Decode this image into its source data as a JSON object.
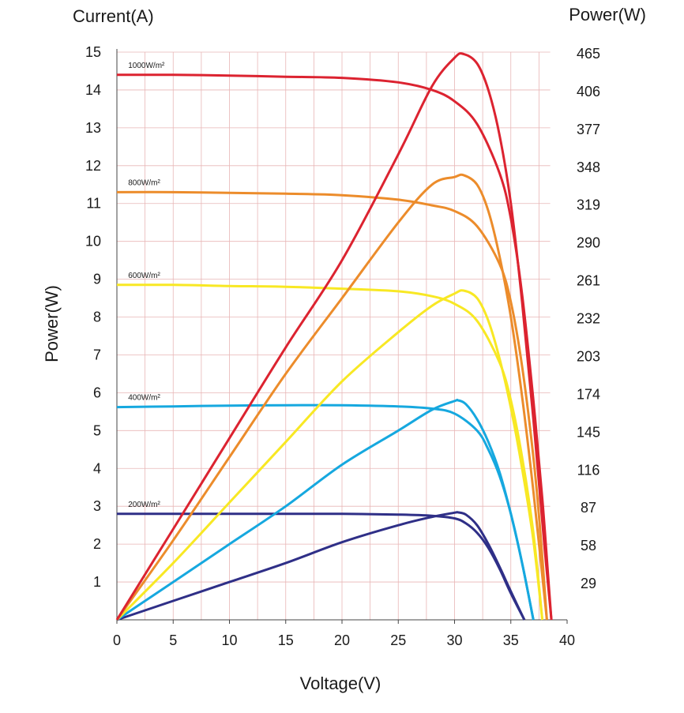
{
  "chart_data": {
    "type": "line",
    "xlabel": "Voltage(V)",
    "ylabel_left_top": "Current(A)",
    "ylabel_left_rotated": "Power(W)",
    "ylabel_right": "Power(W)",
    "xlim": [
      0,
      40
    ],
    "ylim_left": [
      0,
      15
    ],
    "x_ticks": [
      "0",
      "5",
      "10",
      "15",
      "20",
      "25",
      "30",
      "35",
      "40"
    ],
    "y_left_ticks": [
      "1",
      "2",
      "3",
      "4",
      "5",
      "6",
      "7",
      "8",
      "9",
      "10",
      "11",
      "12",
      "13",
      "14",
      "15"
    ],
    "y_right_ticks": [
      {
        "at": 1,
        "label": "29"
      },
      {
        "at": 2,
        "label": "58"
      },
      {
        "at": 3,
        "label": "87"
      },
      {
        "at": 4,
        "label": "116"
      },
      {
        "at": 5,
        "label": "145"
      },
      {
        "at": 6,
        "label": "174"
      },
      {
        "at": 7,
        "label": "203"
      },
      {
        "at": 8,
        "label": "232"
      },
      {
        "at": 9,
        "label": "261"
      },
      {
        "at": 10,
        "label": "290"
      },
      {
        "at": 11,
        "label": "319"
      },
      {
        "at": 12,
        "label": "348"
      },
      {
        "at": 13,
        "label": "377"
      },
      {
        "at": 14,
        "label": "406"
      },
      {
        "at": 15,
        "label": "465"
      }
    ],
    "grid": true,
    "series": [
      {
        "name": "1000W/m²",
        "color": "#dc2330",
        "current": {
          "x": [
            0,
            5,
            10,
            15,
            20,
            25,
            28,
            30,
            32,
            34,
            35,
            36,
            37,
            37.8,
            38.3,
            38.6
          ],
          "y": [
            14.4,
            14.4,
            14.38,
            14.35,
            14.32,
            14.2,
            14.0,
            13.7,
            13.1,
            11.8,
            10.6,
            8.6,
            5.8,
            3.2,
            1.2,
            0
          ]
        },
        "power": {
          "x": [
            0,
            5,
            10,
            15,
            20,
            25,
            28,
            30,
            30.8,
            32,
            33,
            34,
            35,
            36,
            37,
            38,
            38.6
          ],
          "y": [
            0,
            2.4,
            4.8,
            7.2,
            9.5,
            12.3,
            14.1,
            14.85,
            14.95,
            14.7,
            14.0,
            12.8,
            11.0,
            8.4,
            5.3,
            1.9,
            0
          ]
        }
      },
      {
        "name": "800W/m²",
        "color": "#ec8c2b",
        "current": {
          "x": [
            0,
            5,
            10,
            15,
            20,
            25,
            28,
            30,
            32,
            34,
            35,
            36,
            37,
            37.6,
            38.2
          ],
          "y": [
            11.3,
            11.3,
            11.28,
            11.26,
            11.22,
            11.1,
            10.95,
            10.8,
            10.4,
            9.4,
            8.4,
            6.7,
            4.3,
            2.4,
            0
          ]
        },
        "power": {
          "x": [
            0,
            5,
            10,
            15,
            20,
            25,
            28,
            30,
            30.8,
            32,
            33,
            34,
            35,
            36,
            37,
            38.2
          ],
          "y": [
            0,
            2.1,
            4.3,
            6.5,
            8.5,
            10.5,
            11.5,
            11.7,
            11.75,
            11.5,
            10.8,
            9.6,
            8.0,
            5.9,
            3.4,
            0
          ]
        }
      },
      {
        "name": "600W/m²",
        "color": "#f8e824",
        "current": {
          "x": [
            0,
            5,
            10,
            15,
            20,
            25,
            28,
            30,
            32,
            34,
            35,
            36,
            37,
            37.8
          ],
          "y": [
            8.85,
            8.85,
            8.82,
            8.8,
            8.75,
            8.68,
            8.55,
            8.35,
            7.9,
            6.8,
            5.8,
            4.3,
            2.3,
            0
          ]
        },
        "power": {
          "x": [
            0,
            5,
            10,
            15,
            20,
            25,
            28,
            30,
            30.8,
            32,
            33,
            34,
            35,
            36,
            37,
            37.8
          ],
          "y": [
            0,
            1.5,
            3.1,
            4.7,
            6.3,
            7.6,
            8.3,
            8.62,
            8.7,
            8.5,
            7.9,
            6.9,
            5.6,
            4.0,
            2.1,
            0
          ]
        }
      },
      {
        "name": "400W/m²",
        "color": "#16a8df",
        "current": {
          "x": [
            0,
            5,
            10,
            15,
            20,
            25,
            28,
            30,
            32,
            33,
            34,
            35,
            36,
            37
          ],
          "y": [
            5.62,
            5.64,
            5.66,
            5.67,
            5.67,
            5.64,
            5.58,
            5.45,
            5.0,
            4.5,
            3.8,
            2.8,
            1.5,
            0
          ]
        },
        "power": {
          "x": [
            0,
            5,
            10,
            15,
            20,
            25,
            28,
            30,
            30.3,
            31,
            32,
            33,
            34,
            35,
            36,
            37
          ],
          "y": [
            0,
            1.0,
            2.0,
            3.0,
            4.1,
            5.0,
            5.55,
            5.78,
            5.8,
            5.7,
            5.3,
            4.7,
            3.9,
            2.8,
            1.5,
            0
          ]
        }
      },
      {
        "name": "200W/m²",
        "color": "#2f2f87",
        "current": {
          "x": [
            0,
            5,
            10,
            15,
            20,
            25,
            28,
            30,
            31,
            32,
            33,
            34,
            35,
            36.2
          ],
          "y": [
            2.8,
            2.8,
            2.8,
            2.8,
            2.8,
            2.78,
            2.75,
            2.68,
            2.55,
            2.3,
            1.9,
            1.35,
            0.7,
            0
          ]
        },
        "power": {
          "x": [
            0,
            5,
            10,
            15,
            20,
            25,
            28,
            30,
            30.3,
            31,
            32,
            33,
            34,
            35,
            36.2
          ],
          "y": [
            0,
            0.5,
            1.0,
            1.5,
            2.05,
            2.5,
            2.72,
            2.83,
            2.84,
            2.78,
            2.5,
            2.0,
            1.4,
            0.75,
            0
          ]
        }
      }
    ]
  }
}
